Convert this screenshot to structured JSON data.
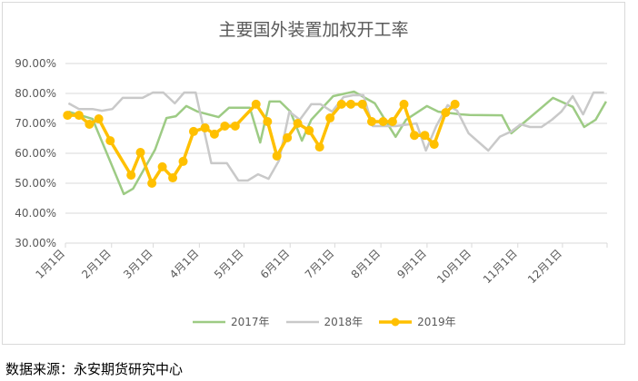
{
  "chart_data": {
    "type": "line",
    "title": "主要国外装置加权开工率",
    "xlabel": "",
    "ylabel": "",
    "x_unit": "week of year",
    "xlim": [
      0,
      52
    ],
    "ylim": [
      30,
      90
    ],
    "yticks": [
      30,
      40,
      50,
      60,
      70,
      80,
      90
    ],
    "ytick_labels": [
      "30.00%",
      "40.00%",
      "50.00%",
      "60.00%",
      "70.00%",
      "80.00%",
      "90.00%"
    ],
    "xtick_days": [
      0,
      31,
      59,
      90,
      120,
      151,
      181,
      212,
      243,
      273,
      304,
      334
    ],
    "xtick_labels": [
      "1月1日",
      "2月1日",
      "3月1日",
      "4月1日",
      "5月1日",
      "6月1日",
      "7月1日",
      "8月1日",
      "9月1日",
      "10月1日",
      "11月1日",
      "12月1日"
    ],
    "grid": true,
    "legend_position": "bottom",
    "series": [
      {
        "name": "2017年",
        "color": "#9DCB84",
        "markers": false,
        "points": [
          [
            0.3,
            73.9
          ],
          [
            2.6,
            71.5
          ],
          [
            5.6,
            46.4
          ],
          [
            6.5,
            48.2
          ],
          [
            8.6,
            61.2
          ],
          [
            9.7,
            71.8
          ],
          [
            10.6,
            72.4
          ],
          [
            11.6,
            75.8
          ],
          [
            12.7,
            73.9
          ],
          [
            14.7,
            72.1
          ],
          [
            15.7,
            75.2
          ],
          [
            17.7,
            75.2
          ],
          [
            18.7,
            63.6
          ],
          [
            19.6,
            77.3
          ],
          [
            20.6,
            77.3
          ],
          [
            21.6,
            73.9
          ],
          [
            22.7,
            64.2
          ],
          [
            23.6,
            71.2
          ],
          [
            25.7,
            79.1
          ],
          [
            26.9,
            80
          ],
          [
            27.7,
            80.6
          ],
          [
            29.7,
            76.7
          ],
          [
            31.7,
            65.5
          ],
          [
            32.7,
            71.2
          ],
          [
            34.7,
            75.8
          ],
          [
            35.8,
            73.9
          ],
          [
            38,
            73
          ],
          [
            38.8,
            72.8
          ],
          [
            41.9,
            72.7
          ],
          [
            42.8,
            66.7
          ],
          [
            45.8,
            75.5
          ],
          [
            46.8,
            78.5
          ],
          [
            48.7,
            75.5
          ],
          [
            49.8,
            68.8
          ],
          [
            50.9,
            71.2
          ],
          [
            51.9,
            77.3
          ]
        ]
      },
      {
        "name": "2018年",
        "color": "#C9C9C9",
        "markers": false,
        "points": [
          [
            0.3,
            76.7
          ],
          [
            1.3,
            74.8
          ],
          [
            2.6,
            74.8
          ],
          [
            3.5,
            74.2
          ],
          [
            4.5,
            74.8
          ],
          [
            5.5,
            78.5
          ],
          [
            7.4,
            78.5
          ],
          [
            8.4,
            80.3
          ],
          [
            9.4,
            80.3
          ],
          [
            10.5,
            76.7
          ],
          [
            11.4,
            80.3
          ],
          [
            12.5,
            80.3
          ],
          [
            14.0,
            56.7
          ],
          [
            15.5,
            56.7
          ],
          [
            16.6,
            50.9
          ],
          [
            17.5,
            50.9
          ],
          [
            18.5,
            53
          ],
          [
            19.5,
            51.5
          ],
          [
            20.5,
            57.6
          ],
          [
            21.5,
            73.9
          ],
          [
            22.5,
            71.2
          ],
          [
            23.6,
            76.4
          ],
          [
            24.5,
            76.4
          ],
          [
            25.6,
            73.9
          ],
          [
            26.7,
            78.8
          ],
          [
            27.6,
            79.4
          ],
          [
            28.6,
            79.4
          ],
          [
            29.5,
            69.1
          ],
          [
            31.7,
            69.1
          ],
          [
            33.7,
            70
          ],
          [
            34.6,
            60.9
          ],
          [
            35.6,
            69.1
          ],
          [
            36.7,
            76.1
          ],
          [
            37.6,
            74.2
          ],
          [
            38.7,
            66.7
          ],
          [
            40.6,
            60.9
          ],
          [
            41.7,
            65.5
          ],
          [
            42.8,
            67.3
          ],
          [
            43.7,
            69.7
          ],
          [
            44.6,
            68.8
          ],
          [
            45.7,
            68.8
          ],
          [
            46.7,
            71.2
          ],
          [
            47.6,
            73.9
          ],
          [
            48.7,
            79.1
          ],
          [
            49.7,
            73
          ],
          [
            50.7,
            80.3
          ],
          [
            51.7,
            80.3
          ]
        ]
      },
      {
        "name": "2019年",
        "color": "#FFC000",
        "markers": true,
        "points": [
          [
            0.2,
            72.7
          ],
          [
            1.3,
            72.7
          ],
          [
            2.3,
            69.7
          ],
          [
            3.2,
            71.5
          ],
          [
            4.3,
            64.2
          ],
          [
            6.3,
            52.7
          ],
          [
            7.2,
            60.3
          ],
          [
            8.3,
            50
          ],
          [
            9.3,
            55.5
          ],
          [
            10.3,
            51.8
          ],
          [
            11.3,
            57.3
          ],
          [
            12.3,
            67.3
          ],
          [
            13.4,
            68.5
          ],
          [
            14.3,
            66.4
          ],
          [
            15.3,
            69.1
          ],
          [
            16.3,
            69.1
          ],
          [
            18.3,
            76.4
          ],
          [
            19.4,
            70.6
          ],
          [
            20.3,
            59.1
          ],
          [
            21.3,
            65.2
          ],
          [
            22.3,
            70
          ],
          [
            23.4,
            67.6
          ],
          [
            24.4,
            62.1
          ],
          [
            25.4,
            71.8
          ],
          [
            26.5,
            76.4
          ],
          [
            27.4,
            76.4
          ],
          [
            28.5,
            76.4
          ],
          [
            29.4,
            70.6
          ],
          [
            30.5,
            70.6
          ],
          [
            31.4,
            70.6
          ],
          [
            32.5,
            76.4
          ],
          [
            33.5,
            66
          ],
          [
            34.5,
            66
          ],
          [
            35.4,
            63
          ],
          [
            36.5,
            73.6
          ],
          [
            37.4,
            76.4
          ]
        ]
      }
    ]
  },
  "source": "数据来源：永安期货研究中心"
}
